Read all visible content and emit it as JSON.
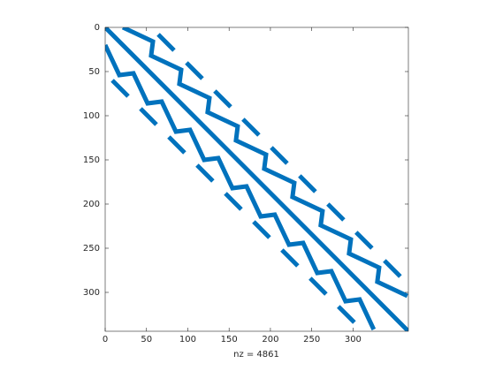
{
  "chart_data": {
    "type": "spy",
    "xlabel": "nz = 4861",
    "color": "#0072bd",
    "xlim": [
      0,
      367
    ],
    "ylim": [
      0,
      344
    ],
    "xticks": [
      0,
      50,
      100,
      150,
      200,
      250,
      300
    ],
    "yticks": [
      0,
      50,
      100,
      150,
      200,
      250,
      300
    ],
    "bands": [
      {
        "x": [
          0,
          367
        ],
        "y": [
          0,
          344
        ]
      },
      {
        "x": [
          21.4,
          57.8,
          55.6,
          92.0,
          89.8,
          126.2,
          124.0,
          160.4,
          158.3,
          194.7,
          192.5,
          228.9,
          226.7,
          263.1,
          260.9,
          297.4,
          295.2,
          331.6,
          329.4,
          365.8
        ],
        "y": [
          0,
          16,
          32,
          48,
          64,
          80,
          96,
          112,
          128,
          144,
          160,
          176,
          192,
          208,
          224,
          240,
          256,
          272,
          288,
          304
        ]
      },
      {
        "x": [
          0,
          17.1,
          34.2,
          51.3,
          68.4,
          85.6,
          102.7,
          119.8,
          136.9,
          154.0,
          171.1,
          188.2,
          205.3,
          222.5,
          239.6,
          256.7,
          273.8,
          290.9,
          308.0,
          325.1
        ],
        "y": [
          20,
          54,
          52,
          86,
          84,
          118,
          116,
          150,
          148,
          182,
          180,
          214,
          212,
          246,
          244,
          278,
          276,
          310,
          308,
          342
        ]
      },
      {
        "x": [
          64.2,
          83.4
        ],
        "y": [
          8,
          26
        ]
      },
      {
        "x": [
          98.4,
          117.6
        ],
        "y": [
          40,
          58
        ]
      },
      {
        "x": [
          132.6,
          151.9
        ],
        "y": [
          72,
          90
        ]
      },
      {
        "x": [
          166.8,
          186.1
        ],
        "y": [
          104,
          122
        ]
      },
      {
        "x": [
          201.1,
          220.3
        ],
        "y": [
          136,
          154
        ]
      },
      {
        "x": [
          235.3,
          254.5
        ],
        "y": [
          168,
          186
        ]
      },
      {
        "x": [
          269.5,
          288.8
        ],
        "y": [
          200,
          218
        ]
      },
      {
        "x": [
          303.7,
          323.0
        ],
        "y": [
          232,
          250
        ]
      },
      {
        "x": [
          338.0,
          357.2
        ],
        "y": [
          264,
          282
        ]
      },
      {
        "x": [
          8.6,
          27.8
        ],
        "y": [
          60,
          78
        ]
      },
      {
        "x": [
          42.8,
          62.0
        ],
        "y": [
          92,
          110
        ]
      },
      {
        "x": [
          77.0,
          96.2
        ],
        "y": [
          124,
          142
        ]
      },
      {
        "x": [
          111.2,
          130.4
        ],
        "y": [
          156,
          174
        ]
      },
      {
        "x": [
          145.5,
          164.7
        ],
        "y": [
          188,
          206
        ]
      },
      {
        "x": [
          179.7,
          198.9
        ],
        "y": [
          220,
          238
        ]
      },
      {
        "x": [
          213.9,
          233.1
        ],
        "y": [
          252,
          270
        ]
      },
      {
        "x": [
          248.1,
          267.4
        ],
        "y": [
          284,
          302
        ]
      },
      {
        "x": [
          282.3,
          301.6
        ],
        "y": [
          316,
          334
        ]
      }
    ]
  }
}
